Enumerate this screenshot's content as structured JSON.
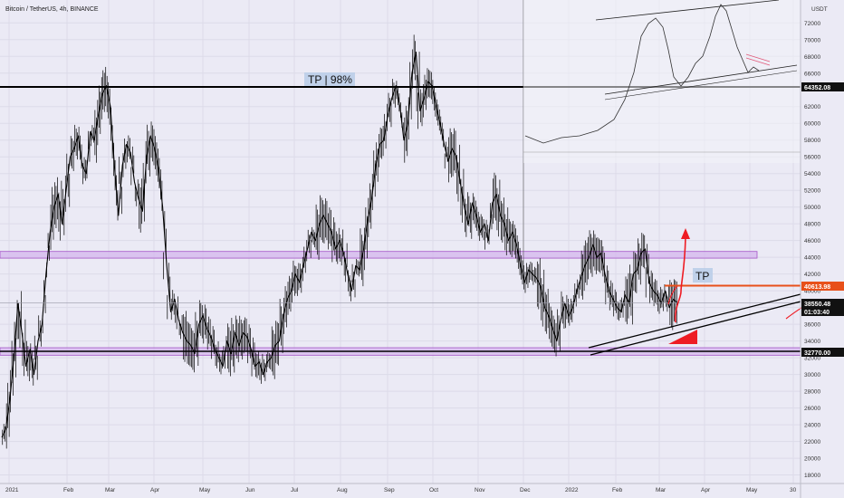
{
  "header": {
    "symbol_title": "Bitcoin / TetherUS, 4h, BINANCE"
  },
  "axis": {
    "unit": "USDT",
    "price_ticks": [
      18000,
      20000,
      22000,
      24000,
      26000,
      28000,
      30000,
      32000,
      34000,
      36000,
      38000,
      40000,
      42000,
      44000,
      46000,
      48000,
      50000,
      52000,
      54000,
      56000,
      58000,
      60000,
      62000,
      66000,
      68000,
      70000,
      72000
    ],
    "time_ticks": [
      "2021",
      "Feb",
      "Mar",
      "Apr",
      "May",
      "Jun",
      "Jul",
      "Aug",
      "Sep",
      "Oct",
      "Nov",
      "Dec",
      "2022",
      "Feb",
      "Mar",
      "Apr",
      "May",
      "30"
    ],
    "price_range": [
      17000,
      75000
    ]
  },
  "price_tags": [
    {
      "value": "64352.08",
      "color": "#111111"
    },
    {
      "value": "40613.98",
      "color": "#e8501a"
    },
    {
      "value": "38550.48",
      "color": "#111111"
    },
    {
      "value": "01:03:40",
      "color": "#111111"
    },
    {
      "value": "32770.00",
      "color": "#111111"
    }
  ],
  "annotations": {
    "top_label": "TP | 98%",
    "tp_label": "TP"
  },
  "chart_data": {
    "type": "line",
    "title": "Bitcoin / TetherUS, 4h, BINANCE",
    "ylabel": "USDT",
    "ylim": [
      17000,
      75000
    ],
    "levels": [
      {
        "label": "TP | 98%",
        "value": 64352.08
      },
      {
        "label": "TP",
        "value": 40613.98
      },
      {
        "label": "",
        "value": 32770.0
      }
    ],
    "zones": [
      {
        "from": 43900,
        "to": 44700
      },
      {
        "from": 32300,
        "to": 33200
      }
    ],
    "series": [
      {
        "values": [
          22500,
          23500,
          27000,
          32000,
          38500,
          35000,
          31000,
          33000,
          30000,
          34000,
          36000,
          42000,
          47000,
          50000,
          51500,
          48000,
          52000,
          56000,
          57000,
          58500,
          55000,
          54000,
          59000,
          58000,
          61000,
          63500,
          64500,
          62000,
          55000,
          49000,
          55000,
          57500,
          56500,
          53000,
          51000,
          49500,
          56000,
          58500,
          57000,
          54500,
          50000,
          43000,
          37500,
          39000,
          36500,
          35000,
          34000,
          33500,
          32500,
          36000,
          37000,
          35500,
          34500,
          33000,
          32000,
          31000,
          34000,
          32500,
          35000,
          33500,
          35000,
          34500,
          33000,
          31000,
          31500,
          30000,
          31500,
          32000,
          33500,
          34000,
          37000,
          39000,
          40000,
          42000,
          41000,
          43000,
          45000,
          47000,
          46000,
          48000,
          49000,
          48000,
          47000,
          45000,
          46000,
          44500,
          42000,
          40000,
          43000,
          42500,
          45000,
          48500,
          51000,
          55000,
          57500,
          58000,
          61000,
          63000,
          64500,
          62000,
          58000,
          60000,
          66000,
          68500,
          61500,
          63000,
          65000,
          64500,
          62000,
          60000,
          57500,
          55500,
          57000,
          56000,
          53000,
          50000,
          48000,
          50500,
          49000,
          47000,
          48000,
          46000,
          50500,
          51500,
          49000,
          48000,
          46000,
          47000,
          45500,
          43000,
          41000,
          42500,
          42000,
          41500,
          40500,
          38000,
          37000,
          35500,
          34000,
          36500,
          38500,
          37000,
          38000,
          40000,
          41500,
          43000,
          44000,
          45500,
          44000,
          44500,
          42000,
          40000,
          39000,
          38000,
          37500,
          39500,
          38500,
          42000,
          42500,
          44500,
          45000,
          41000,
          40000,
          39500,
          38500,
          40000,
          38000,
          39000,
          38550
        ],
        "color": "#000000"
      }
    ]
  }
}
